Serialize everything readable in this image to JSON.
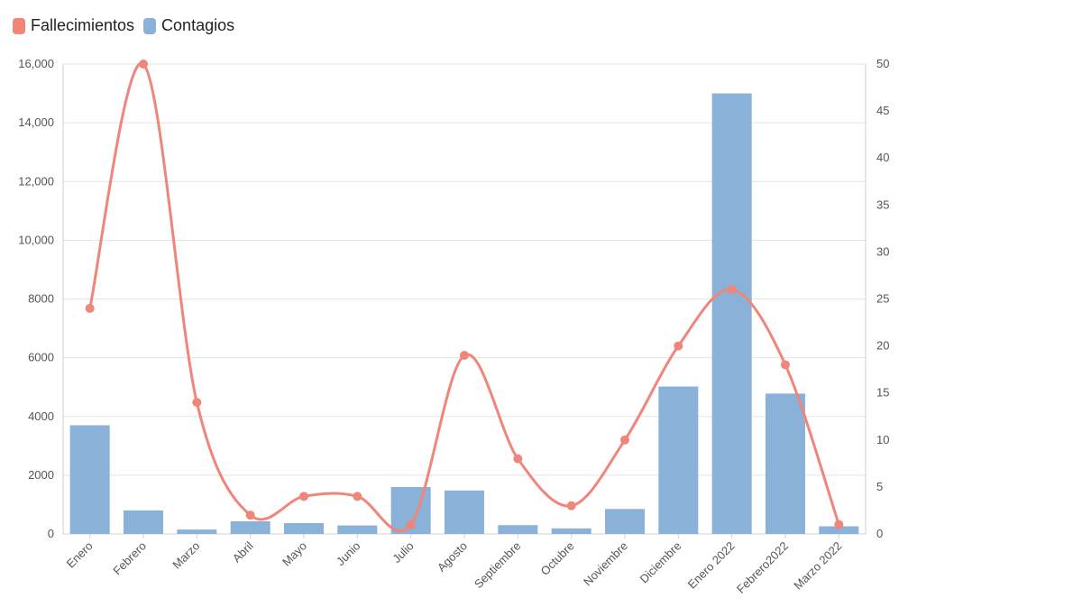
{
  "chart_data": {
    "type": "bar+line",
    "categories": [
      "Enero",
      "Febrero",
      "Marzo",
      "Abril",
      "Mayo",
      "Junio",
      "Julio",
      "Agosto",
      "Septiembre",
      "Octubre",
      "Noviembre",
      "Diciembre",
      "Enero 2022",
      "Febrero2022",
      "Marzo 2022"
    ],
    "series": [
      {
        "name": "Fallecimientos",
        "type": "line",
        "axis": "right",
        "color": "#f0857a",
        "values": [
          24,
          50,
          14,
          2,
          4,
          4,
          1,
          19,
          8,
          3,
          10,
          20,
          26,
          18,
          1
        ]
      },
      {
        "name": "Contagios",
        "type": "bar",
        "axis": "left",
        "color": "#8ab1d8",
        "values": [
          3700,
          800,
          150,
          430,
          370,
          290,
          1600,
          1480,
          300,
          190,
          850,
          5020,
          15000,
          4780,
          260
        ]
      }
    ],
    "y_left": {
      "ylim": [
        0,
        16000
      ],
      "ticks": [
        "0",
        "2000",
        "4000",
        "6000",
        "8000",
        "10,000",
        "12,000",
        "14,000",
        "16,000"
      ]
    },
    "y_right": {
      "ylim": [
        0,
        50
      ],
      "ticks": [
        "0",
        "5",
        "10",
        "15",
        "20",
        "25",
        "30",
        "35",
        "40",
        "45",
        "50"
      ]
    },
    "grid": true,
    "legend_position": "top-left"
  }
}
